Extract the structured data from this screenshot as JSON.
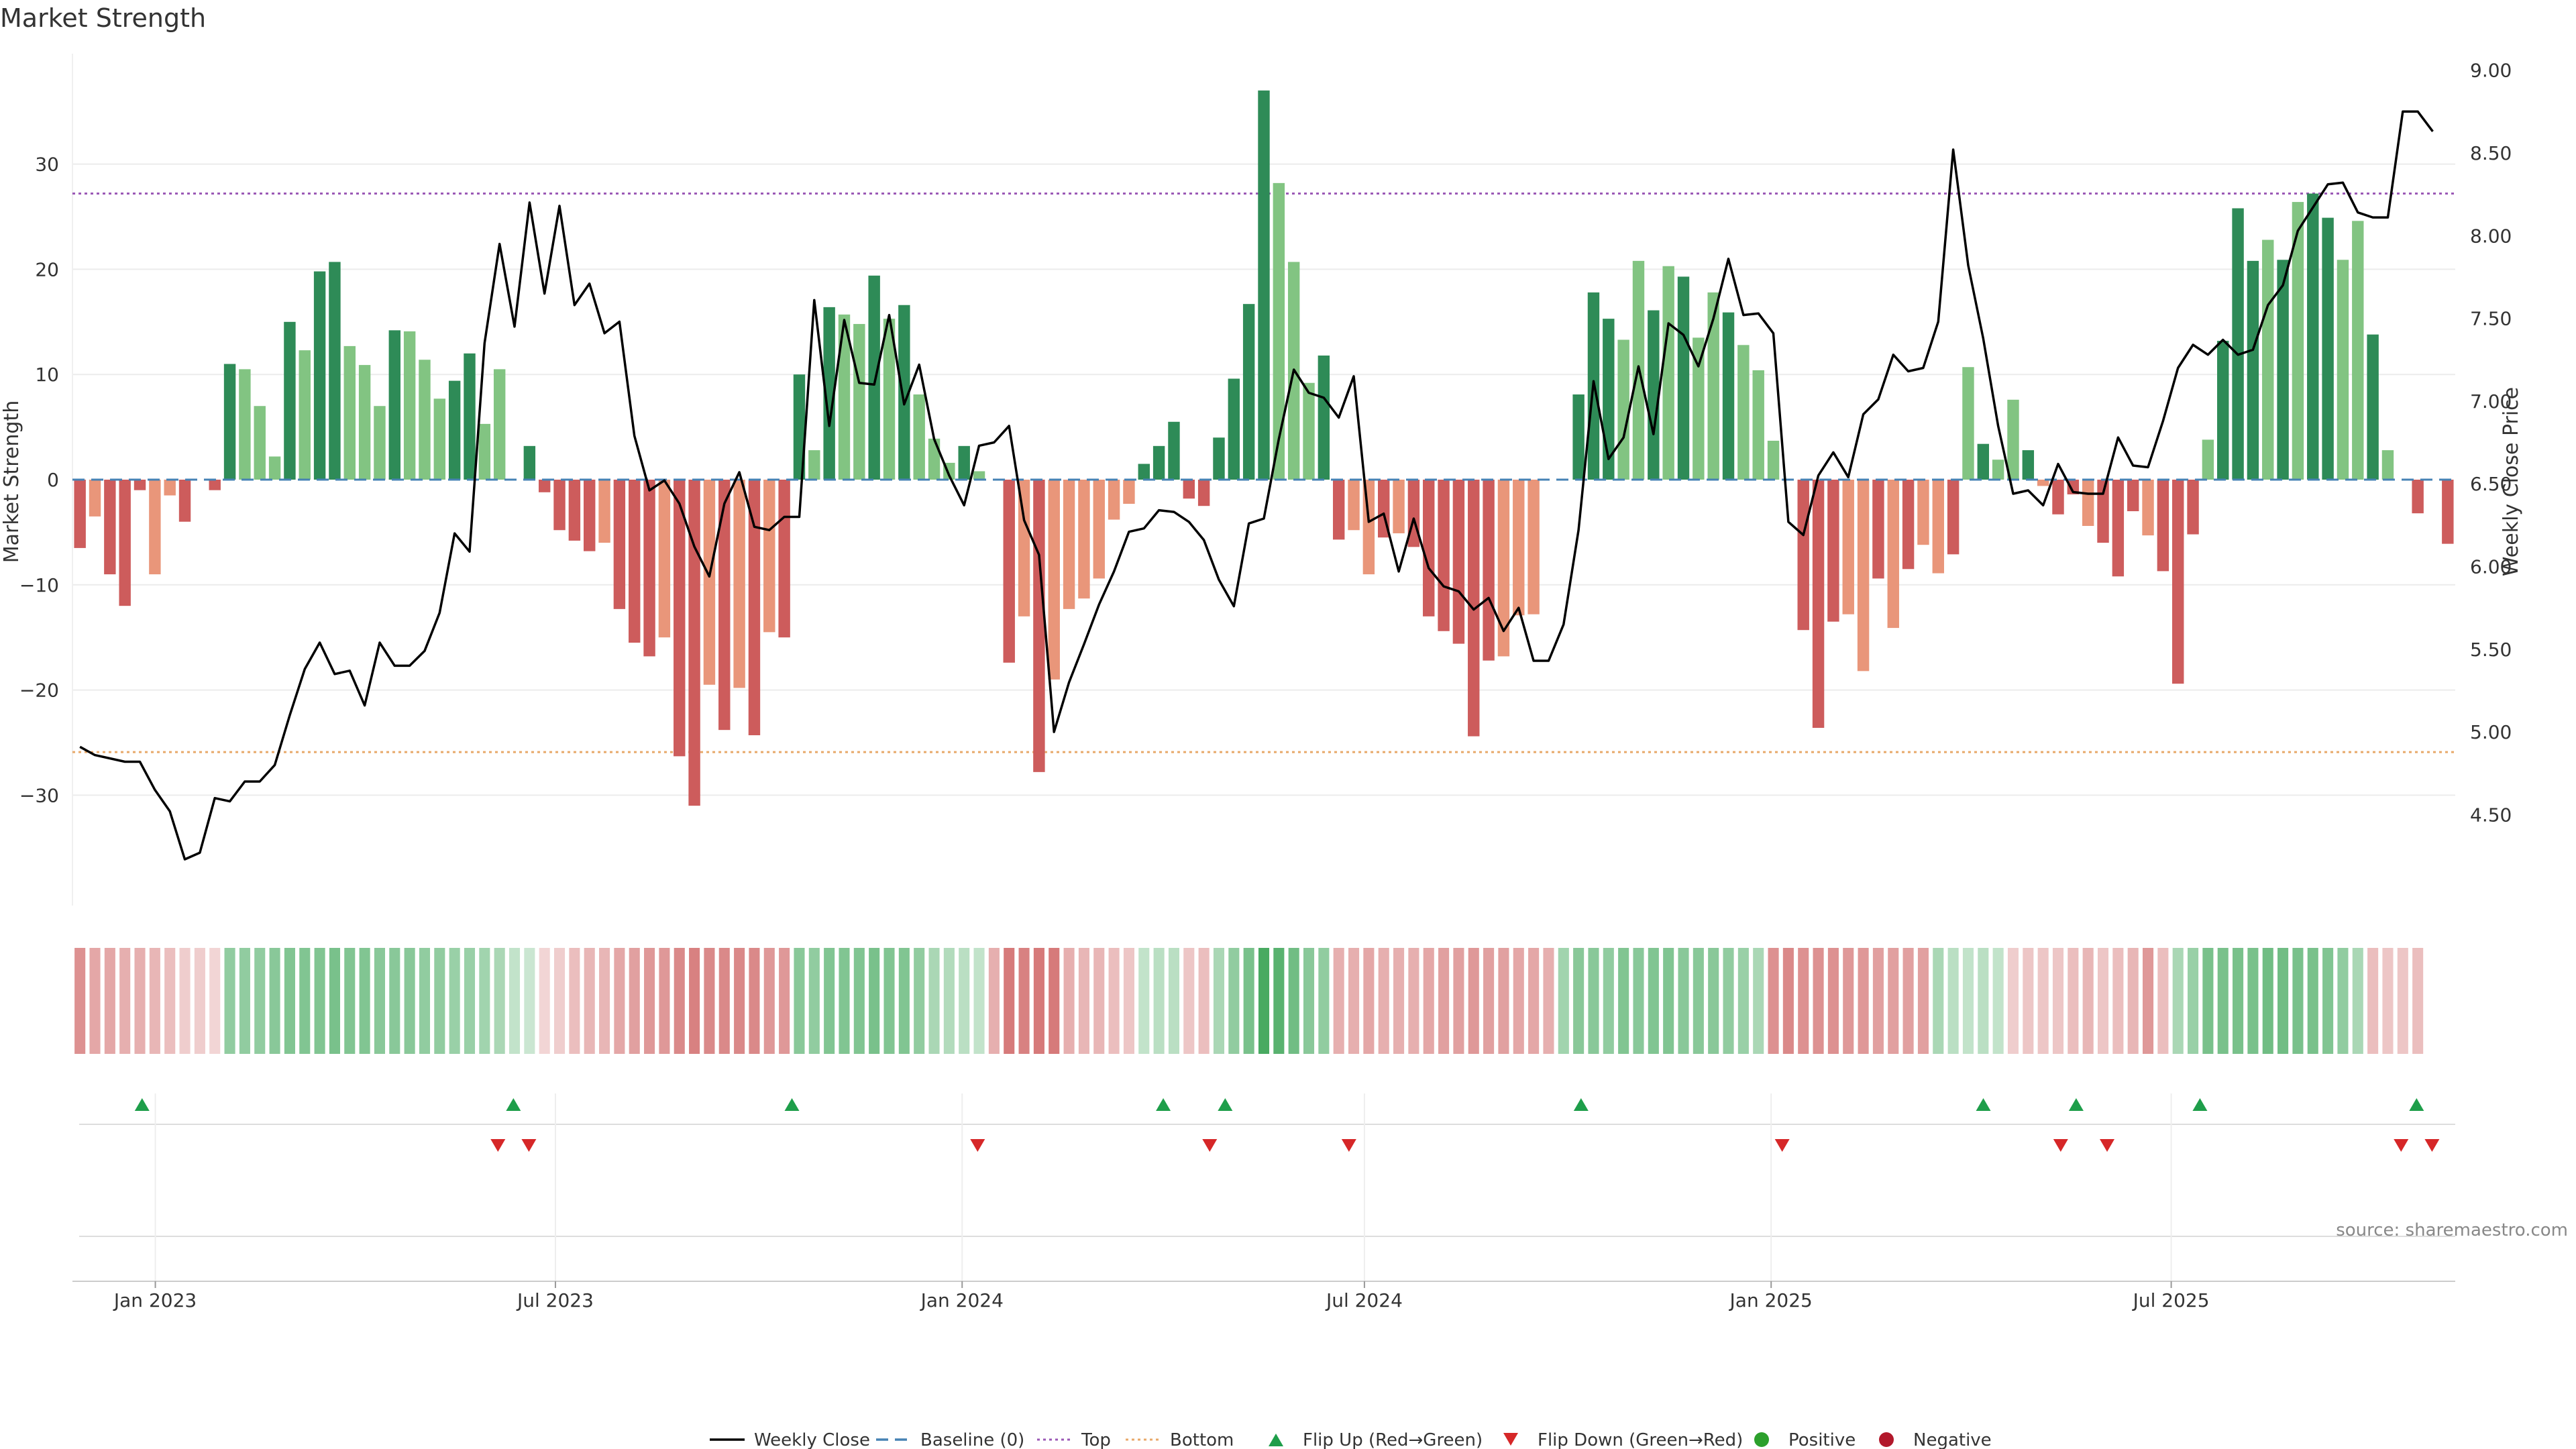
{
  "chart_data": {
    "type": "bar",
    "title": "Market Strength",
    "ylabel": "Market Strength",
    "y2label": "Weekly Close Price",
    "ylim": [
      -40.5,
      40.5
    ],
    "y2lim": [
      3.95,
      9.1
    ],
    "yticks": [
      -30,
      -20,
      -10,
      0,
      10,
      20,
      30
    ],
    "yticklabels": [
      "−30",
      "−20",
      "−10",
      "0",
      "10",
      "20",
      "30"
    ],
    "y2ticks": [
      4.5,
      5.0,
      5.5,
      6.0,
      6.5,
      7.0,
      7.5,
      8.0,
      8.5,
      9.0
    ],
    "y2ticklabels": [
      "4.50",
      "5.00",
      "5.50",
      "6.00",
      "6.50",
      "7.00",
      "7.50",
      "8.00",
      "8.50",
      "9.00"
    ],
    "x_start": "2022-11-28",
    "x_end": "2025-11-03",
    "xticks": [
      "2023-01-01",
      "2023-07-01",
      "2024-01-01",
      "2024-07-01",
      "2025-01-01",
      "2025-07-01"
    ],
    "xticklabels": [
      "Jan 2023",
      "Jul 2023",
      "Jan 2024",
      "Jul 2024",
      "Jan 2025",
      "Jul 2025"
    ],
    "top_threshold": 27.2,
    "bottom_threshold": -25.9,
    "colors": {
      "strong_up": "#2e8b57",
      "up": "#82c482",
      "strong_down": "#cd5c5c",
      "down": "#e9967a",
      "close": "#000000",
      "baseline": "#4682b4",
      "top": "#9b59b6",
      "bottom": "#e8a96b",
      "flip_up": "#1e9e4a",
      "flip_down": "#d62728",
      "positive": "#2ca02c",
      "negative": "#b2182b"
    },
    "strength": [
      -6.5,
      -3.5,
      -9,
      -12,
      -1,
      -9,
      -1.5,
      -4,
      0,
      -1,
      11,
      10.5,
      7,
      2.2,
      15,
      12.3,
      19.8,
      20.7,
      12.7,
      10.9,
      7,
      14.2,
      14.1,
      11.4,
      7.7,
      9.4,
      12,
      5.3,
      10.5,
      0,
      3.2,
      -1.2,
      -4.8,
      -5.8,
      -6.8,
      -6,
      -12.3,
      -15.5,
      -16.8,
      -15,
      -26.3,
      -31,
      -19.5,
      -23.8,
      -19.8,
      -24.3,
      -14.5,
      -15,
      10,
      2.8,
      16.4,
      15.7,
      14.8,
      19.4,
      15.3,
      16.6,
      8.1,
      3.9,
      1.6,
      3.2,
      0.8,
      0,
      -17.4,
      -13,
      -27.8,
      -19,
      -12.3,
      -11.3,
      -9.4,
      -3.8,
      -2.3,
      1.5,
      3.2,
      5.5,
      -1.8,
      -2.5,
      4,
      9.6,
      16.7,
      37,
      28.2,
      20.7,
      9.2,
      11.8,
      -5.7,
      -4.8,
      -9,
      -5.5,
      -5.1,
      -6.4,
      -13,
      -14.4,
      -15.6,
      -24.4,
      -17.2,
      -16.8,
      -12.9,
      -12.8,
      0,
      0,
      8.1,
      17.8,
      15.3,
      13.3,
      20.8,
      16.1,
      20.3,
      19.3,
      13.5,
      17.8,
      15.9,
      12.8,
      10.4,
      3.7,
      0,
      -14.3,
      -23.6,
      -13.5,
      -12.8,
      -18.2,
      -9.4,
      -14.1,
      -8.5,
      -6.2,
      -8.9,
      -7.1,
      10.7,
      3.4,
      1.9,
      7.6,
      2.8,
      -0.6,
      -3.3,
      -1.4,
      -4.4,
      -6,
      -9.2,
      -3,
      -5.3,
      -8.7,
      -19.4,
      -5.2,
      3.8,
      13.2,
      25.8,
      20.8,
      22.8,
      20.9,
      26.4,
      27.2,
      24.9,
      20.9,
      24.6,
      13.8,
      2.8,
      0,
      -3.2,
      0,
      -6.1
    ],
    "strength_shade": [
      "s",
      "w",
      "s",
      "s",
      "s",
      "w",
      "w",
      "s",
      "s",
      "s",
      "s",
      "w",
      "w",
      "w",
      "s",
      "w",
      "s",
      "s",
      "w",
      "w",
      "w",
      "s",
      "w",
      "w",
      "w",
      "s",
      "s",
      "w",
      "w",
      "s",
      "s",
      "s",
      "s",
      "s",
      "s",
      "w",
      "s",
      "s",
      "s",
      "w",
      "s",
      "s",
      "w",
      "s",
      "w",
      "s",
      "w",
      "s",
      "s",
      "w",
      "s",
      "w",
      "w",
      "s",
      "w",
      "s",
      "w",
      "w",
      "w",
      "s",
      "w",
      "s",
      "s",
      "w",
      "s",
      "w",
      "w",
      "w",
      "w",
      "w",
      "w",
      "s",
      "s",
      "s",
      "s",
      "s",
      "s",
      "s",
      "s",
      "s",
      "w",
      "w",
      "w",
      "s",
      "s",
      "w",
      "w",
      "s",
      "w",
      "s",
      "s",
      "s",
      "s",
      "s",
      "s",
      "w",
      "w",
      "w",
      "w",
      "s",
      "s",
      "s",
      "s",
      "w",
      "w",
      "s",
      "w",
      "s",
      "w",
      "w",
      "s",
      "w",
      "w",
      "w",
      "w",
      "s",
      "s",
      "s",
      "w",
      "w",
      "s",
      "w",
      "s",
      "w",
      "w",
      "s",
      "w",
      "s",
      "w",
      "w",
      "s",
      "w",
      "s",
      "s",
      "w",
      "s",
      "s",
      "s",
      "w",
      "s",
      "s",
      "s",
      "w",
      "s",
      "s",
      "s",
      "w",
      "s",
      "w",
      "s",
      "s",
      "w",
      "w",
      "s",
      "w",
      "w",
      "s",
      "s",
      "s",
      "s"
    ],
    "weekly_close": [
      4.91,
      4.86,
      4.84,
      4.82,
      4.82,
      4.65,
      4.52,
      4.23,
      4.27,
      4.6,
      4.58,
      4.7,
      4.7,
      4.8,
      5.1,
      5.38,
      5.54,
      5.35,
      5.37,
      5.16,
      5.54,
      5.4,
      5.4,
      5.49,
      5.72,
      6.2,
      6.09,
      7.35,
      7.95,
      7.45,
      8.2,
      7.65,
      8.18,
      7.58,
      7.71,
      7.41,
      7.48,
      6.79,
      6.46,
      6.52,
      6.38,
      6.12,
      5.94,
      6.38,
      6.57,
      6.24,
      6.22,
      6.3,
      6.3,
      7.61,
      6.85,
      7.49,
      7.11,
      7.1,
      7.52,
      6.98,
      7.22,
      6.77,
      6.55,
      6.37,
      6.73,
      6.75,
      6.85,
      6.28,
      6.07,
      5.0,
      5.3,
      5.53,
      5.77,
      5.97,
      6.21,
      6.23,
      6.34,
      6.33,
      6.27,
      6.16,
      5.92,
      5.76,
      6.26,
      6.29,
      6.77,
      7.19,
      7.05,
      7.02,
      6.9,
      7.15,
      6.27,
      6.32,
      5.97,
      6.29,
      5.99,
      5.88,
      5.85,
      5.74,
      5.81,
      5.61,
      5.75,
      5.43,
      5.43,
      5.65,
      6.22,
      7.12,
      6.65,
      6.78,
      7.21,
      6.8,
      7.47,
      7.4,
      7.21,
      7.5,
      7.86,
      7.52,
      7.53,
      7.41,
      6.27,
      6.19,
      6.55,
      6.69,
      6.54,
      6.92,
      7.01,
      7.28,
      7.18,
      7.2,
      7.48,
      8.52,
      7.82,
      7.38,
      6.85,
      6.44,
      6.46,
      6.37,
      6.62,
      6.45,
      6.44,
      6.44,
      6.78,
      6.61,
      6.6,
      6.88,
      7.2,
      7.34,
      7.28,
      7.37,
      7.28,
      7.31,
      7.58,
      7.7,
      8.03,
      8.17,
      8.31,
      8.32,
      8.14,
      8.11,
      8.11,
      8.75,
      8.75,
      8.63
    ],
    "heat_strip": [
      -12,
      -9,
      -9,
      -8,
      -8,
      -7,
      -6,
      -4,
      -4,
      -3,
      11,
      11,
      11,
      12,
      13,
      13,
      13,
      14,
      13,
      13,
      12,
      12,
      12,
      11,
      11,
      10,
      10,
      9,
      8,
      5,
      4,
      -3,
      -4,
      -6,
      -7,
      -7,
      -9,
      -10,
      -11,
      -11,
      -13,
      -14,
      -13,
      -13,
      -13,
      -13,
      -11,
      -11,
      12,
      11,
      13,
      13,
      13,
      14,
      13,
      13,
      11,
      8,
      7,
      6,
      5,
      -8,
      -15,
      -14,
      -15,
      -15,
      -8,
      -7,
      -7,
      -6,
      -5,
      5,
      6,
      6,
      -5,
      -6,
      8,
      11,
      14,
      20,
      18,
      15,
      12,
      11,
      -8,
      -8,
      -9,
      -8,
      -8,
      -8,
      -9,
      -10,
      -10,
      -11,
      -10,
      -10,
      -9,
      -9,
      -8,
      9,
      12,
      12,
      11,
      13,
      12,
      13,
      13,
      12,
      12,
      12,
      11,
      10,
      8,
      -12,
      -13,
      -12,
      -12,
      -12,
      -11,
      -11,
      -10,
      -10,
      -10,
      -10,
      8,
      6,
      5,
      6,
      5,
      -4,
      -5,
      -5,
      -5,
      -6,
      -7,
      -5,
      -6,
      -7,
      -11,
      -6,
      8,
      10,
      14,
      14,
      14,
      14,
      15,
      15,
      14,
      14,
      13,
      11,
      8,
      -6,
      -5,
      -5,
      -6
    ],
    "flip_up": [
      "2022-12-26",
      "2023-06-12",
      "2023-10-16",
      "2024-04-01",
      "2024-04-29",
      "2024-10-07",
      "2025-04-07",
      "2025-05-19",
      "2025-07-14",
      "2025-10-20"
    ],
    "flip_down": [
      "2023-06-05",
      "2023-06-19",
      "2024-01-08",
      "2024-04-22",
      "2024-06-24",
      "2025-01-06",
      "2025-05-12",
      "2025-06-02",
      "2025-10-13",
      "2025-10-27"
    ],
    "source": "source: sharemaestro.com",
    "legend": [
      {
        "key": "close",
        "label": "Weekly Close"
      },
      {
        "key": "baseline",
        "label": "Baseline (0)"
      },
      {
        "key": "top",
        "label": "Top"
      },
      {
        "key": "bottom",
        "label": "Bottom"
      },
      {
        "key": "flip_up",
        "label": "Flip Up (Red→Green)"
      },
      {
        "key": "flip_down",
        "label": "Flip Down (Green→Red)"
      },
      {
        "key": "positive",
        "label": "Positive"
      },
      {
        "key": "negative",
        "label": "Negative"
      }
    ]
  }
}
